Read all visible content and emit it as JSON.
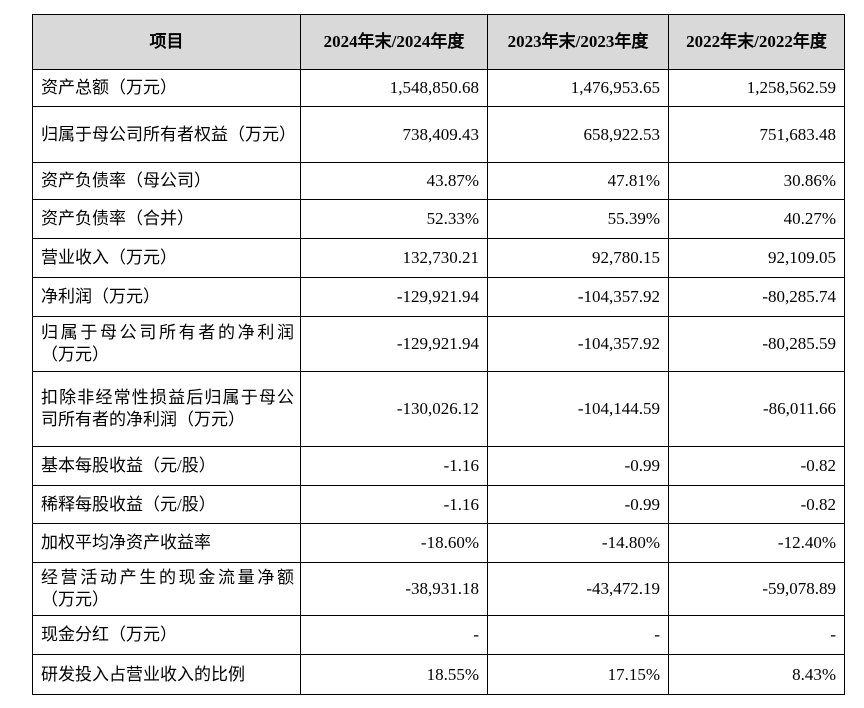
{
  "table": {
    "columns": [
      "项目",
      "2024年末/2024年度",
      "2023年末/2023年度",
      "2022年末/2022年度"
    ],
    "rows": [
      [
        "资产总额（万元）",
        "1,548,850.68",
        "1,476,953.65",
        "1,258,562.59"
      ],
      [
        "归属于母公司所有者权益（万元）",
        "738,409.43",
        "658,922.53",
        "751,683.48"
      ],
      [
        "资产负债率（母公司）",
        "43.87%",
        "47.81%",
        "30.86%"
      ],
      [
        "资产负债率（合并）",
        "52.33%",
        "55.39%",
        "40.27%"
      ],
      [
        "营业收入（万元）",
        "132,730.21",
        "92,780.15",
        "92,109.05"
      ],
      [
        "净利润（万元）",
        "-129,921.94",
        "-104,357.92",
        "-80,285.74"
      ],
      [
        "归属于母公司所有者的净利润（万元）",
        "-129,921.94",
        "-104,357.92",
        "-80,285.59"
      ],
      [
        "扣除非经常性损益后归属于母公司所有者的净利润（万元）",
        "-130,026.12",
        "-104,144.59",
        "-86,011.66"
      ],
      [
        "基本每股收益（元/股）",
        "-1.16",
        "-0.99",
        "-0.82"
      ],
      [
        "稀释每股收益（元/股）",
        "-1.16",
        "-0.99",
        "-0.82"
      ],
      [
        "加权平均净资产收益率",
        "-18.60%",
        "-14.80%",
        "-12.40%"
      ],
      [
        "经营活动产生的现金流量净额（万元）",
        "-38,931.18",
        "-43,472.19",
        "-59,078.89"
      ],
      [
        "现金分红（万元）",
        "-",
        "-",
        "-"
      ],
      [
        "研发投入占营业收入的比例",
        "18.55%",
        "17.15%",
        "8.43%"
      ]
    ]
  }
}
